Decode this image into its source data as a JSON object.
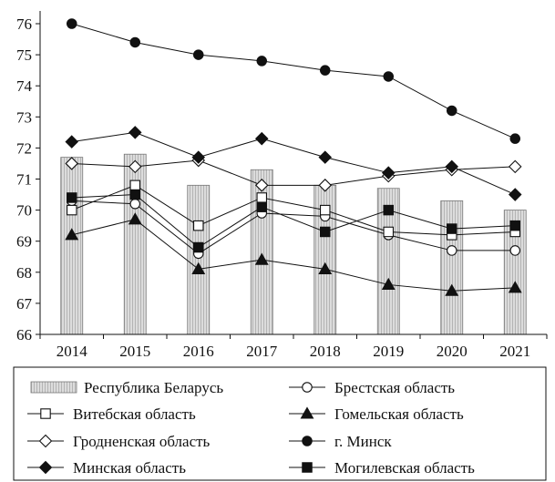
{
  "chart_data": {
    "type": "bar",
    "title": "",
    "xlabel": "",
    "ylabel": "",
    "categories": [
      "2014",
      "2015",
      "2016",
      "2017",
      "2018",
      "2019",
      "2020",
      "2021"
    ],
    "ylim": [
      66,
      76
    ],
    "yticks": [
      66,
      67,
      68,
      69,
      70,
      71,
      72,
      73,
      74,
      75,
      76
    ],
    "grid": false,
    "legend_position": "bottom",
    "bar_series": {
      "name": "Республика Беларусь",
      "values": [
        71.7,
        71.8,
        70.8,
        71.3,
        70.8,
        70.7,
        70.3,
        70.0
      ],
      "fill": "#dcdcdc"
    },
    "line_series": [
      {
        "name": "Брестская область",
        "marker": "circle-open",
        "values": [
          70.3,
          70.2,
          68.6,
          69.9,
          69.8,
          69.2,
          68.7,
          68.7
        ]
      },
      {
        "name": "Витебская область",
        "marker": "square-open",
        "values": [
          70.0,
          70.8,
          69.5,
          70.4,
          70.0,
          69.3,
          69.2,
          69.3
        ]
      },
      {
        "name": "Гомельская область",
        "marker": "triangle",
        "values": [
          69.2,
          69.7,
          68.1,
          68.4,
          68.1,
          67.6,
          67.4,
          67.5
        ]
      },
      {
        "name": "Гродненская область",
        "marker": "diamond-open",
        "values": [
          71.5,
          71.4,
          71.6,
          70.8,
          70.8,
          71.1,
          71.3,
          71.4
        ]
      },
      {
        "name": "г. Минск",
        "marker": "circle",
        "values": [
          76.0,
          75.4,
          75.0,
          74.8,
          74.5,
          74.3,
          73.2,
          72.3
        ]
      },
      {
        "name": "Минская область",
        "marker": "diamond",
        "values": [
          72.2,
          72.5,
          71.7,
          72.3,
          71.7,
          71.2,
          71.4,
          70.5
        ]
      },
      {
        "name": "Могилевская область",
        "marker": "square",
        "values": [
          70.4,
          70.5,
          68.8,
          70.1,
          69.3,
          70.0,
          69.4,
          69.5
        ]
      }
    ],
    "legend": [
      "Республика Беларусь",
      "Брестская область",
      "Витебская область",
      "Гомельская область",
      "Гродненская область",
      "г. Минск",
      "Минская область",
      "Могилевская область"
    ],
    "colors": {
      "line": "#111111",
      "bar_fill": "#dcdcdc",
      "bar_stroke": "#777777"
    }
  }
}
